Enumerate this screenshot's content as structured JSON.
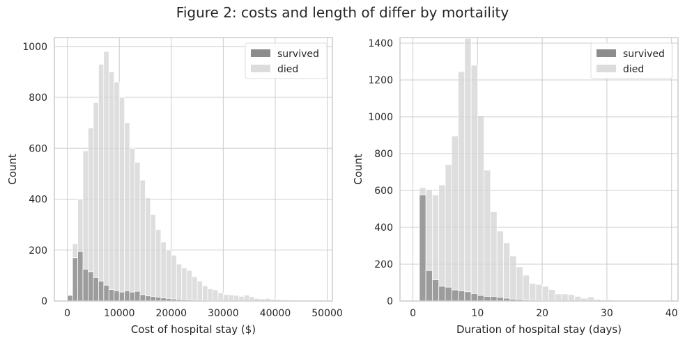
{
  "title": "Figure 2: costs and length of differ by mortaility",
  "colors": {
    "survived": "#808080",
    "died": "#d3d3d3",
    "grid": "#cccccc",
    "frame": "#cccccc"
  },
  "chart_data": [
    {
      "type": "bar",
      "title": "",
      "xlabel": "Cost of hospital stay ($)",
      "ylabel": "Count",
      "xlim": [
        -2500,
        51000
      ],
      "ylim": [
        0,
        1035
      ],
      "xticks": [
        0,
        10000,
        20000,
        30000,
        40000,
        50000
      ],
      "xtick_labels": [
        "0",
        "10000",
        "20000",
        "30000",
        "40000",
        "50000"
      ],
      "yticks": [
        0,
        200,
        400,
        600,
        800,
        1000
      ],
      "ytick_labels": [
        "0",
        "200",
        "400",
        "600",
        "800",
        "1000"
      ],
      "grid": true,
      "legend_position": "top-right",
      "legend": [
        "survived",
        "died"
      ],
      "bin_start": 0,
      "bin_width": 1000,
      "series": [
        {
          "name": "survived",
          "values": [
            22,
            170,
            195,
            125,
            115,
            92,
            78,
            62,
            45,
            40,
            35,
            40,
            35,
            38,
            25,
            20,
            18,
            15,
            12,
            10,
            8,
            6,
            5,
            4,
            3,
            3,
            2,
            2,
            2,
            2,
            1,
            1,
            1,
            1,
            1,
            1,
            0,
            0,
            0,
            0,
            0,
            0,
            0,
            0,
            0,
            0,
            0,
            0,
            0,
            0
          ]
        },
        {
          "name": "died",
          "values": [
            22,
            225,
            400,
            590,
            680,
            780,
            930,
            980,
            900,
            860,
            800,
            700,
            600,
            545,
            475,
            405,
            340,
            280,
            232,
            200,
            180,
            145,
            130,
            120,
            95,
            78,
            60,
            48,
            44,
            32,
            25,
            24,
            22,
            18,
            23,
            17,
            10,
            8,
            10,
            6,
            5,
            4,
            3,
            2,
            2,
            1,
            1,
            1,
            0,
            0
          ]
        }
      ]
    },
    {
      "type": "bar",
      "title": "",
      "xlabel": "Duration of hospital stay (days)",
      "ylabel": "Count",
      "xlim": [
        -2,
        41
      ],
      "ylim": [
        0,
        1430
      ],
      "xticks": [
        0,
        10,
        20,
        30,
        40
      ],
      "xtick_labels": [
        "0",
        "10",
        "20",
        "30",
        "40"
      ],
      "yticks": [
        0,
        200,
        400,
        600,
        800,
        1000,
        1200,
        1400
      ],
      "ytick_labels": [
        "0",
        "200",
        "400",
        "600",
        "800",
        "1000",
        "1200",
        "1400"
      ],
      "grid": true,
      "legend_position": "top-right",
      "legend": [
        "survived",
        "died"
      ],
      "bin_start": 1,
      "bin_width": 1,
      "series": [
        {
          "name": "survived",
          "values": [
            575,
            165,
            115,
            80,
            75,
            60,
            55,
            50,
            40,
            30,
            25,
            25,
            20,
            15,
            10,
            8,
            5,
            4,
            3,
            3,
            2,
            2,
            1,
            1,
            1,
            1,
            1,
            0,
            0,
            0,
            0,
            0,
            0,
            0,
            0,
            0,
            0,
            0,
            0
          ]
        },
        {
          "name": "died",
          "values": [
            615,
            605,
            575,
            630,
            740,
            895,
            1245,
            1425,
            1280,
            1005,
            710,
            485,
            380,
            315,
            245,
            185,
            140,
            95,
            90,
            80,
            62,
            38,
            38,
            35,
            25,
            15,
            22,
            8,
            5,
            5,
            3,
            3,
            2,
            2,
            1,
            1,
            0,
            0,
            0
          ]
        }
      ]
    }
  ]
}
